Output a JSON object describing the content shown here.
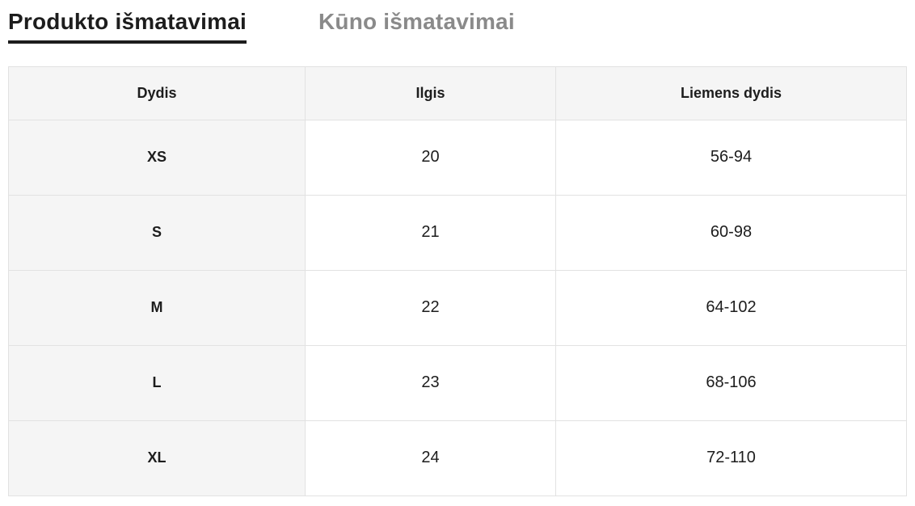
{
  "tabs": [
    {
      "label": "Produkto išmatavimai",
      "active": true
    },
    {
      "label": "Kūno išmatavimai",
      "active": false
    }
  ],
  "table": {
    "headers": [
      "Dydis",
      "Ilgis",
      "Liemens dydis"
    ],
    "rows": [
      {
        "size": "XS",
        "length": "20",
        "waist": "56-94"
      },
      {
        "size": "S",
        "length": "21",
        "waist": "60-98"
      },
      {
        "size": "M",
        "length": "22",
        "waist": "64-102"
      },
      {
        "size": "L",
        "length": "23",
        "waist": "68-106"
      },
      {
        "size": "XL",
        "length": "24",
        "waist": "72-110"
      }
    ]
  },
  "colors": {
    "active_tab_text": "#1d1d1d",
    "active_tab_underline": "#1d1d1d",
    "inactive_tab_text": "#8a8a8a",
    "header_background": "#f5f5f5",
    "first_column_background": "#f5f5f5",
    "cell_background": "#ffffff",
    "border": "#e2e2e2",
    "cell_text": "#1d1d1d"
  }
}
